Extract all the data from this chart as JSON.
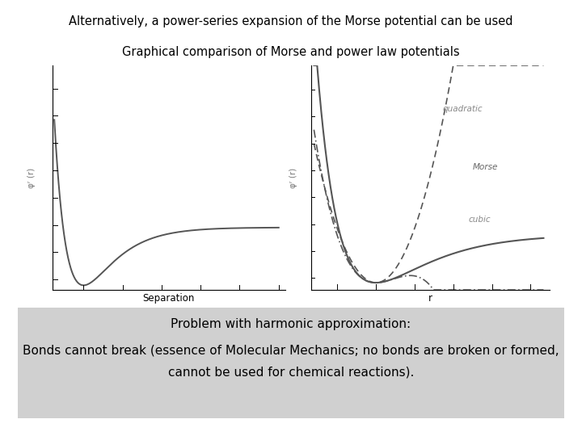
{
  "title_top": "Alternatively, a power-series expansion of the Morse potential can be used",
  "title_sub": "Graphical comparison of Morse and power law potentials",
  "xlabel_left": "Separation",
  "ylabel_left": "φʳ (r)",
  "ylabel_right": "φʳ (r)",
  "xlabel_right": "r",
  "label_quadratic": "quadratic",
  "label_morse": "Morse",
  "label_cubic": "cubic",
  "bottom_box_color": "#d0d0d0",
  "bottom_title": "Problem with harmonic approximation:",
  "bottom_text1": "Bonds cannot break (essence of Molecular Mechanics; no bonds are broken or formed,",
  "bottom_text2": "cannot be used for chemical reactions).",
  "bg_color": "#ffffff",
  "curve_color": "#555555"
}
